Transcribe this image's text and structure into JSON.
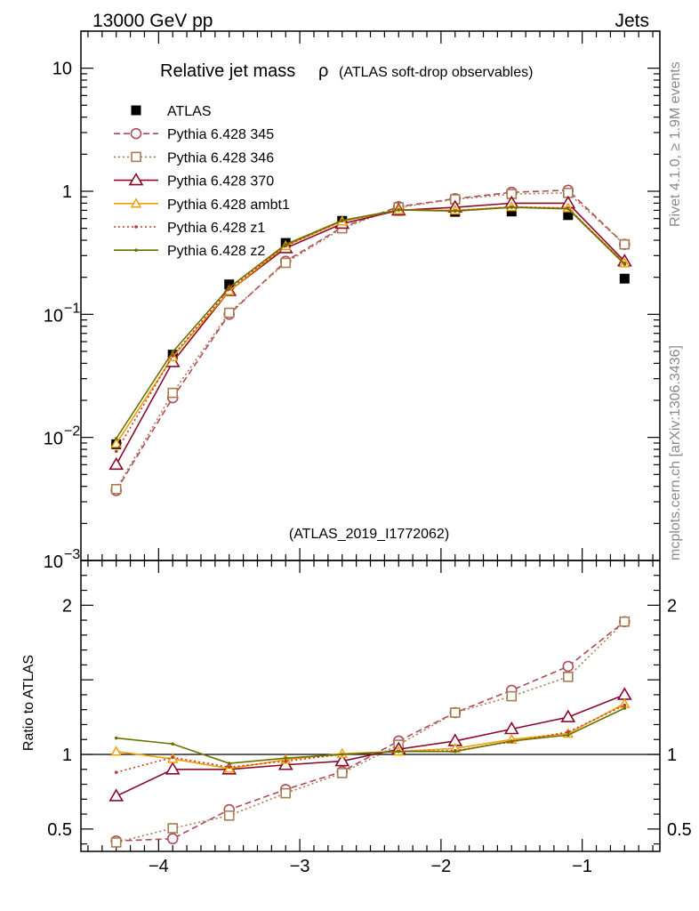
{
  "header": {
    "left": "13000 GeV pp",
    "right": "Jets"
  },
  "side_labels": {
    "rivet": "Rivet 4.1.0, ≥ 1.9M events",
    "mcplots": "mcplots.cern.ch [arXiv:1306.3436]"
  },
  "chart_data": [
    {
      "type": "line",
      "panel": "main",
      "title": "Relative jet mass",
      "title_symbol": "ρ",
      "subtitle": "(ATLAS soft-drop observables)",
      "reference_label": "(ATLAS_2019_I1772062)",
      "yscale": "log",
      "ylim": [
        0.001,
        20
      ],
      "xlim": [
        -4.55,
        -0.45
      ],
      "y_ticks": [
        {
          "value": 10,
          "label": "10"
        },
        {
          "value": 1,
          "label": "1"
        },
        {
          "value": 0.1,
          "base": "10",
          "exp": "−1"
        },
        {
          "value": 0.01,
          "base": "10",
          "exp": "−2"
        },
        {
          "value": 0.001,
          "base": "10",
          "exp": "−3"
        }
      ],
      "x": [
        -4.3,
        -3.9,
        -3.5,
        -3.1,
        -2.7,
        -2.3,
        -1.9,
        -1.5,
        -1.1,
        -0.7
      ],
      "legend_position": "top-left",
      "series": [
        {
          "name": "ATLAS",
          "color": "#000000",
          "marker": "square",
          "dash": "none",
          "values": [
            0.0088,
            0.047,
            0.175,
            0.38,
            0.575,
            0.695,
            0.68,
            0.685,
            0.64,
            0.195
          ]
        },
        {
          "name": "Pythia 6.428 345",
          "color": "#b04a5a",
          "marker": "circle",
          "dash": "dashed",
          "values": [
            0.0037,
            0.021,
            0.1,
            0.27,
            0.51,
            0.75,
            0.87,
            0.98,
            1.02,
            0.37
          ]
        },
        {
          "name": "Pythia 6.428 346",
          "color": "#a67c52",
          "marker": "open-square",
          "dash": "dotted",
          "values": [
            0.0038,
            0.023,
            0.103,
            0.262,
            0.5,
            0.74,
            0.86,
            0.95,
            0.97,
            0.37
          ]
        },
        {
          "name": "Pythia 6.428 370",
          "color": "#8b0a2a",
          "marker": "triangle",
          "dash": "solid",
          "values": [
            0.006,
            0.041,
            0.155,
            0.345,
            0.545,
            0.7,
            0.74,
            0.8,
            0.8,
            0.27
          ]
        },
        {
          "name": "Pythia 6.428 ambt1",
          "color": "#f0a000",
          "marker": "open-triangle",
          "dash": "solid",
          "values": [
            0.0089,
            0.045,
            0.155,
            0.36,
            0.57,
            0.705,
            0.7,
            0.745,
            0.73,
            0.26
          ]
        },
        {
          "name": "Pythia 6.428 z1",
          "color": "#c0392b",
          "marker": "dot",
          "dash": "dotted",
          "values": [
            0.0077,
            0.046,
            0.16,
            0.36,
            0.575,
            0.705,
            0.695,
            0.745,
            0.73,
            0.26
          ]
        },
        {
          "name": "Pythia 6.428 z2",
          "color": "#6b7000",
          "marker": "dot",
          "dash": "solid",
          "values": [
            0.0098,
            0.0495,
            0.165,
            0.37,
            0.58,
            0.705,
            0.69,
            0.74,
            0.72,
            0.255
          ]
        }
      ]
    },
    {
      "type": "line",
      "panel": "ratio",
      "ylabel": "Ratio to ATLAS",
      "ylim": [
        0.35,
        2.3
      ],
      "xlim": [
        -4.55,
        -0.45
      ],
      "y_ticks": [
        {
          "value": 2,
          "label": "2"
        },
        {
          "value": 1,
          "label": "1"
        },
        {
          "value": 0.5,
          "label": "0.5"
        }
      ],
      "x_ticks": [
        {
          "value": -4,
          "label": "−4"
        },
        {
          "value": -3,
          "label": "−3"
        },
        {
          "value": -2,
          "label": "−2"
        },
        {
          "value": -1,
          "label": "−1"
        }
      ],
      "x": [
        -4.3,
        -3.9,
        -3.5,
        -3.1,
        -2.7,
        -2.3,
        -1.9,
        -1.5,
        -1.1,
        -0.7
      ],
      "series": [
        {
          "name": "Pythia 6.428 345",
          "color": "#b04a5a",
          "marker": "circle",
          "dash": "dashed",
          "values": [
            0.42,
            0.435,
            0.63,
            0.765,
            0.885,
            1.09,
            1.28,
            1.43,
            1.59,
            1.89
          ]
        },
        {
          "name": "Pythia 6.428 346",
          "color": "#a67c52",
          "marker": "open-square",
          "dash": "dotted",
          "values": [
            0.41,
            0.505,
            0.59,
            0.74,
            0.875,
            1.065,
            1.28,
            1.39,
            1.52,
            1.89
          ]
        },
        {
          "name": "Pythia 6.428 370",
          "color": "#8b0a2a",
          "marker": "triangle",
          "dash": "solid",
          "values": [
            0.72,
            0.9,
            0.9,
            0.93,
            0.955,
            1.035,
            1.09,
            1.17,
            1.25,
            1.4
          ]
        },
        {
          "name": "Pythia 6.428 ambt1",
          "color": "#f0a000",
          "marker": "open-triangle",
          "dash": "solid",
          "values": [
            1.02,
            0.97,
            0.905,
            0.965,
            1.005,
            1.02,
            1.04,
            1.1,
            1.14,
            1.34
          ]
        },
        {
          "name": "Pythia 6.428 z1",
          "color": "#c0392b",
          "marker": "dot",
          "dash": "dotted",
          "values": [
            0.88,
            0.98,
            0.915,
            0.955,
            1.0,
            1.02,
            1.025,
            1.085,
            1.15,
            1.33
          ]
        },
        {
          "name": "Pythia 6.428 z2",
          "color": "#6b7000",
          "marker": "dot",
          "dash": "solid",
          "values": [
            1.11,
            1.07,
            0.94,
            0.975,
            1.0,
            1.02,
            1.02,
            1.09,
            1.13,
            1.31
          ]
        }
      ]
    }
  ]
}
